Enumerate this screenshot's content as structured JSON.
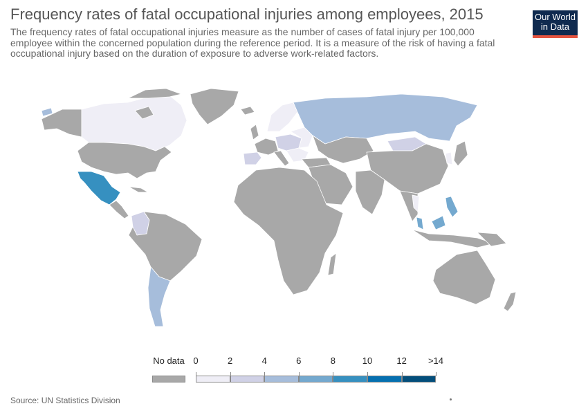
{
  "header": {
    "title": "Frequency rates of fatal occupational injuries among employees, 2015",
    "subtitle": "The frequency rates of fatal occupational injuries measure as the number of cases of fatal injury per 100,000 employee within the concerned population during the reference period. It is a measure of the risk of having a fatal occupational injury based on the duration of exposure to adverse work-related factors."
  },
  "logo": {
    "line1": "Our World",
    "line2": "in Data"
  },
  "legend": {
    "nodata_label": "No data",
    "nodata_color": "#a8a8a8",
    "bins": [
      {
        "label": "0",
        "color": "#efeef6"
      },
      {
        "label": "2",
        "color": "#d0d1e6"
      },
      {
        "label": "4",
        "color": "#a6bddb"
      },
      {
        "label": "6",
        "color": "#74a9cf"
      },
      {
        "label": "8",
        "color": "#3690c0"
      },
      {
        "label": "10",
        "color": "#0570b0"
      },
      {
        "label": "12",
        "color": "#034e7b"
      }
    ],
    "last_label": ">14"
  },
  "colors": {
    "nodata": "#a8a8a8",
    "c0": "#efeef6",
    "c2": "#d0d1e6",
    "c4": "#a6bddb",
    "c6": "#74a9cf",
    "c8": "#3690c0",
    "c10": "#0570b0"
  },
  "map_data": [
    {
      "region": "Canada",
      "bin": "0-2"
    },
    {
      "region": "Mexico",
      "bin": "8-10"
    },
    {
      "region": "Russia",
      "bin": "4-6"
    },
    {
      "region": "Argentina",
      "bin": "4-6"
    },
    {
      "region": "Colombia",
      "bin": "2-4"
    },
    {
      "region": "Mongolia",
      "bin": "2-4"
    },
    {
      "region": "Spain",
      "bin": "2-4"
    },
    {
      "region": "Philippines",
      "bin": "6-8"
    },
    {
      "region": "Malaysia",
      "bin": "6-8"
    }
  ],
  "footer": {
    "source": "Source: UN Statistics Division"
  }
}
